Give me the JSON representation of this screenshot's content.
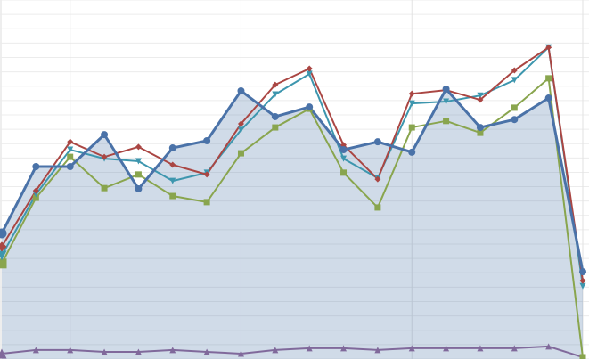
{
  "chart_data": {
    "type": "line",
    "x": [
      0,
      1,
      2,
      3,
      4,
      5,
      6,
      7,
      8,
      9,
      10,
      11,
      12,
      13,
      14,
      15,
      16,
      17
    ],
    "xlim": [
      0,
      17
    ],
    "xticks": [
      2,
      7,
      12,
      17
    ],
    "ylim": [
      0,
      100
    ],
    "yticks": [
      0,
      4,
      8,
      12,
      16,
      20,
      24,
      28,
      32,
      36,
      40,
      44,
      48,
      52,
      56,
      60,
      64,
      68,
      72,
      76,
      80,
      84,
      88,
      92,
      96,
      100
    ],
    "grid": true,
    "series": [
      {
        "color": "#4a72a8",
        "marker": "circle",
        "fill": true,
        "width": 3,
        "values": [
          35.0,
          53.6,
          53.6,
          62.5,
          47.4,
          58.8,
          60.8,
          74.7,
          67.5,
          70.2,
          58.3,
          60.5,
          57.6,
          75.2,
          64.5,
          66.7,
          72.7,
          24.3
        ]
      },
      {
        "color": "#aa4643",
        "marker": "diamond",
        "fill": false,
        "width": 2,
        "values": [
          31.3,
          46.9,
          60.5,
          56.3,
          59.1,
          54.1,
          51.4,
          65.5,
          76.4,
          80.9,
          59.6,
          50.1,
          73.9,
          74.9,
          72.2,
          80.4,
          86.8,
          21.8
        ]
      },
      {
        "color": "#3d96ae",
        "marker": "triangle-down",
        "fill": false,
        "width": 2,
        "values": [
          28.8,
          45.9,
          58.3,
          55.8,
          55.1,
          49.6,
          51.9,
          63.8,
          73.7,
          79.4,
          55.8,
          50.4,
          71.2,
          71.7,
          73.4,
          77.7,
          86.8,
          20.3
        ]
      },
      {
        "color": "#89a54e",
        "marker": "square",
        "fill": false,
        "width": 2,
        "values": [
          26.6,
          44.9,
          56.3,
          47.6,
          51.4,
          45.4,
          43.7,
          57.3,
          64.5,
          69.7,
          51.9,
          42.2,
          64.5,
          66.3,
          63.0,
          70.0,
          78.2,
          0.5
        ]
      },
      {
        "color": "#80699b",
        "marker": "triangle-up",
        "fill": false,
        "width": 2,
        "values": [
          1.5,
          2.5,
          2.5,
          2.0,
          2.0,
          2.5,
          2.0,
          1.5,
          2.5,
          3.0,
          3.0,
          2.5,
          3.0,
          3.0,
          3.0,
          3.0,
          3.5,
          0.5
        ]
      }
    ]
  }
}
